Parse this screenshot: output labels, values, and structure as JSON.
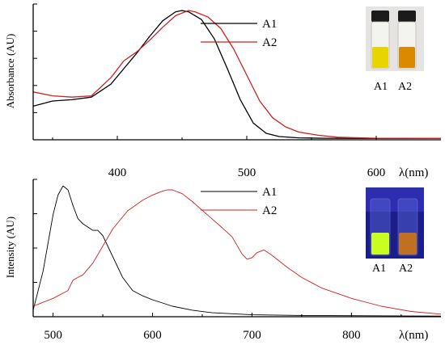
{
  "chart_data": [
    {
      "type": "line",
      "ylabel": "Absorbance (AU)",
      "xlabel": "λ(nm)",
      "xlim": [
        335,
        650
      ],
      "ylim": [
        0,
        1.05
      ],
      "xticks": [
        400,
        500,
        600
      ],
      "y_tick_labels_shown": false,
      "legend": {
        "placement": "top-right",
        "entries": [
          "A1",
          "A2"
        ]
      },
      "inset_photo": {
        "description_labels": [
          "A1",
          "A2"
        ],
        "solution_colors": [
          "#e8d400",
          "#d98a00"
        ]
      },
      "series": [
        {
          "name": "A1",
          "color": "#000000",
          "x": [
            335,
            350,
            365,
            380,
            395,
            405,
            415,
            425,
            435,
            445,
            450,
            455,
            465,
            475,
            485,
            495,
            505,
            515,
            525,
            540,
            560,
            600,
            650
          ],
          "y": [
            0.26,
            0.3,
            0.31,
            0.33,
            0.43,
            0.55,
            0.67,
            0.8,
            0.92,
            0.99,
            1.0,
            0.99,
            0.93,
            0.78,
            0.55,
            0.31,
            0.13,
            0.05,
            0.025,
            0.015,
            0.012,
            0.01,
            0.01
          ]
        },
        {
          "name": "A2",
          "color": "#cc2222",
          "x": [
            335,
            350,
            365,
            380,
            395,
            405,
            415,
            425,
            435,
            445,
            455,
            460,
            470,
            480,
            490,
            500,
            510,
            520,
            530,
            540,
            555,
            570,
            600,
            650
          ],
          "y": [
            0.37,
            0.34,
            0.33,
            0.34,
            0.48,
            0.61,
            0.68,
            0.77,
            0.87,
            0.96,
            1.0,
            0.99,
            0.95,
            0.86,
            0.7,
            0.5,
            0.3,
            0.17,
            0.1,
            0.06,
            0.035,
            0.02,
            0.012,
            0.01
          ]
        }
      ]
    },
    {
      "type": "line",
      "ylabel": "Intensity (AU)",
      "xlabel": "λ(nm)",
      "xlim": [
        480,
        890
      ],
      "ylim": [
        0,
        1.05
      ],
      "xticks": [
        500,
        600,
        700,
        800
      ],
      "y_tick_labels_shown": false,
      "legend": {
        "placement": "top-right",
        "entries": [
          "A1",
          "A2"
        ]
      },
      "inset_photo": {
        "description_labels": [
          "A1",
          "A2"
        ],
        "solution_colors": [
          "#c8ff20",
          "#c07020"
        ]
      },
      "series": [
        {
          "name": "A1",
          "color": "#000000",
          "x": [
            480,
            490,
            500,
            505,
            510,
            515,
            520,
            525,
            530,
            540,
            545,
            550,
            560,
            570,
            580,
            590,
            600,
            620,
            640,
            660,
            700,
            750,
            800,
            890
          ],
          "y": [
            0.05,
            0.35,
            0.78,
            0.93,
            1.0,
            0.97,
            0.85,
            0.75,
            0.71,
            0.66,
            0.66,
            0.62,
            0.46,
            0.3,
            0.2,
            0.16,
            0.13,
            0.08,
            0.05,
            0.03,
            0.015,
            0.01,
            0.008,
            0.005
          ]
        },
        {
          "name": "A2",
          "color": "#cc2222",
          "x": [
            480,
            500,
            515,
            520,
            525,
            530,
            540,
            550,
            560,
            575,
            590,
            600,
            610,
            615,
            620,
            630,
            640,
            655,
            670,
            680,
            690,
            695,
            700,
            705,
            712,
            720,
            735,
            750,
            770,
            800,
            830,
            860,
            890
          ],
          "y": [
            0.08,
            0.14,
            0.2,
            0.28,
            0.3,
            0.32,
            0.41,
            0.54,
            0.67,
            0.81,
            0.89,
            0.93,
            0.96,
            0.97,
            0.97,
            0.94,
            0.88,
            0.78,
            0.68,
            0.61,
            0.48,
            0.44,
            0.45,
            0.49,
            0.51,
            0.47,
            0.38,
            0.3,
            0.22,
            0.14,
            0.08,
            0.04,
            0.02
          ]
        }
      ]
    }
  ]
}
